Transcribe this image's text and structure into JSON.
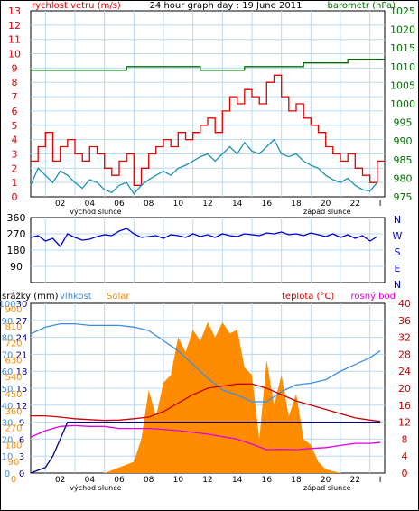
{
  "title": "24 hour graph day : 19 June 2011",
  "colors": {
    "wind": "#e00000",
    "gust": "#1e90b4",
    "baro": "#007000",
    "dir": "#0000cc",
    "rain": "#000080",
    "humidity": "#3e8ee0",
    "solar": "#ff8c00",
    "temp": "#cc0000",
    "dew": "#e000e0",
    "grid": "#b8d8f0"
  },
  "x_ticks": [
    "02",
    "04",
    "06",
    "08",
    "10",
    "12",
    "14",
    "16",
    "18",
    "20",
    "22"
  ],
  "sun": {
    "sunrise_label": "východ slunce",
    "sunset_label": "západ slunce"
  },
  "chart_data": [
    {
      "type": "line",
      "title": "24 hour graph day : 19 June 2011",
      "left_label": "rychlost vetru (m/s)",
      "right_label": "barometr (hPa)",
      "ylim_left": [
        0,
        13
      ],
      "ylim_right": [
        975,
        1025
      ],
      "y_ticks_left": [
        "0",
        "1",
        "2",
        "3",
        "4",
        "5",
        "6",
        "7",
        "8",
        "9",
        "10",
        "11",
        "12",
        "13"
      ],
      "y_ticks_right": [
        "975",
        "980",
        "985",
        "990",
        "995",
        "1000",
        "1005",
        "1010",
        "1015",
        "1020",
        "1025"
      ],
      "grid": true,
      "series": [
        {
          "name": "rychlost vetru",
          "color": "#e00000",
          "hours": [
            0,
            0.5,
            1,
            1.5,
            2,
            2.5,
            3,
            3.5,
            4,
            4.5,
            5,
            5.5,
            6,
            6.5,
            7,
            7.5,
            8,
            8.5,
            9,
            9.5,
            10,
            10.5,
            11,
            11.5,
            12,
            12.5,
            13,
            13.5,
            14,
            14.5,
            15,
            15.5,
            16,
            16.5,
            17,
            17.5,
            18,
            18.5,
            19,
            19.5,
            20,
            20.5,
            21,
            21.5,
            22,
            22.5,
            23,
            23.5
          ],
          "values": [
            2.5,
            3.5,
            4.5,
            2.5,
            3.5,
            4,
            3,
            2.5,
            3.5,
            3,
            2,
            1.5,
            2.5,
            3,
            0.8,
            2,
            3,
            3.5,
            4,
            3.5,
            4.5,
            4,
            4.5,
            5,
            5.5,
            4.5,
            6,
            7,
            6.5,
            7.5,
            7,
            6.5,
            8,
            8.5,
            7,
            6,
            6.5,
            5.5,
            5,
            4.5,
            3.5,
            3,
            2.5,
            3,
            2,
            1.5,
            1,
            2.5
          ]
        },
        {
          "name": "naraz",
          "color": "#1e90b4",
          "hours": [
            0,
            0.5,
            1,
            1.5,
            2,
            2.5,
            3,
            3.5,
            4,
            4.5,
            5,
            5.5,
            6,
            6.5,
            7,
            7.5,
            8,
            8.5,
            9,
            9.5,
            10,
            10.5,
            11,
            11.5,
            12,
            12.5,
            13,
            13.5,
            14,
            14.5,
            15,
            15.5,
            16,
            16.5,
            17,
            17.5,
            18,
            18.5,
            19,
            19.5,
            20,
            20.5,
            21,
            21.5,
            22,
            22.5,
            23,
            23.5
          ],
          "values": [
            0.8,
            2,
            1.5,
            1,
            1.8,
            1.5,
            1,
            0.6,
            1.2,
            1,
            0.5,
            0.3,
            0.8,
            1,
            0.2,
            0.8,
            1.2,
            1.5,
            1.8,
            1.5,
            2,
            2.2,
            2.5,
            2.8,
            3,
            2.5,
            3,
            3.5,
            3,
            3.8,
            3.2,
            3,
            3.5,
            4,
            3,
            2.8,
            3,
            2.5,
            2.2,
            2,
            1.5,
            1.2,
            1,
            1.3,
            0.8,
            0.5,
            0.4,
            1
          ]
        },
        {
          "name": "barometr",
          "color": "#007000",
          "hours": [
            0,
            6,
            6.5,
            11,
            11.5,
            14,
            14.5,
            18,
            18.5,
            21,
            21.5,
            23.7
          ],
          "values": [
            1009,
            1009,
            1010,
            1010,
            1009,
            1009,
            1010,
            1010,
            1011,
            1011,
            1012,
            1012
          ]
        }
      ]
    },
    {
      "type": "scatter",
      "y_ticks": [
        "90",
        "180",
        "270",
        "360"
      ],
      "compass_labels": [
        "N",
        "W",
        "S",
        "E",
        "N"
      ],
      "ylim": [
        0,
        360
      ],
      "series": [
        {
          "name": "smer vetru",
          "color": "#0000cc",
          "hours": [
            0,
            0.5,
            1,
            1.5,
            2,
            2.5,
            3,
            3.5,
            4,
            4.5,
            5,
            5.5,
            6,
            6.5,
            7,
            7.5,
            8,
            8.5,
            9,
            9.5,
            10,
            10.5,
            11,
            11.5,
            12,
            12.5,
            13,
            13.5,
            14,
            14.5,
            15,
            15.5,
            16,
            16.5,
            17,
            17.5,
            18,
            18.5,
            19,
            19.5,
            20,
            20.5,
            21,
            21.5,
            22,
            22.5,
            23,
            23.5
          ],
          "values": [
            250,
            260,
            230,
            245,
            200,
            270,
            250,
            235,
            240,
            255,
            265,
            260,
            285,
            300,
            270,
            250,
            255,
            260,
            245,
            265,
            260,
            250,
            270,
            255,
            265,
            250,
            270,
            260,
            255,
            270,
            265,
            260,
            275,
            270,
            280,
            265,
            270,
            260,
            275,
            265,
            255,
            270,
            250,
            265,
            245,
            260,
            230,
            255
          ]
        }
      ]
    },
    {
      "type": "line",
      "left_labels": [
        "srážky (mm)",
        "vlhkost",
        "Solar"
      ],
      "right_labels": [
        "teplota (°C)",
        "rosný bod"
      ],
      "y_ticks_rain": [
        "0",
        "3",
        "6",
        "9",
        "12",
        "15",
        "18",
        "21",
        "24",
        "27",
        "30"
      ],
      "y_ticks_humidity": [
        "0",
        "10",
        "20",
        "30",
        "40",
        "50",
        "60",
        "70",
        "80",
        "90",
        "100"
      ],
      "y_ticks_solar": [
        "0",
        "90",
        "180",
        "270",
        "360",
        "450",
        "540",
        "630",
        "720",
        "810",
        "900"
      ],
      "y_ticks_temp": [
        "0",
        "4",
        "8",
        "12",
        "16",
        "20",
        "24",
        "28",
        "32",
        "36",
        "40"
      ],
      "ylim_humidity": [
        0,
        100
      ],
      "ylim_temp": [
        0,
        40
      ],
      "grid": true,
      "series": [
        {
          "name": "vlhkost",
          "color": "#3e8ee0",
          "hours": [
            0,
            1,
            2,
            3,
            4,
            5,
            6,
            7,
            8,
            9,
            10,
            11,
            12,
            13,
            14,
            15,
            16,
            17,
            18,
            19,
            20,
            21,
            22,
            23,
            23.7
          ],
          "values": [
            82,
            86,
            88,
            88,
            87,
            87,
            87,
            86,
            84,
            78,
            72,
            64,
            56,
            49,
            46,
            42,
            42,
            48,
            52,
            53,
            55,
            60,
            64,
            68,
            72
          ]
        },
        {
          "name": "teplota",
          "color": "#cc0000",
          "hours": [
            0,
            1,
            2,
            3,
            4,
            5,
            6,
            7,
            8,
            9,
            10,
            11,
            12,
            13,
            14,
            15,
            16,
            17,
            18,
            19,
            20,
            21,
            22,
            23,
            23.7
          ],
          "values": [
            13.5,
            13.5,
            13.2,
            12.8,
            12.6,
            12.4,
            12.5,
            12.8,
            13.2,
            14.5,
            16.5,
            18.5,
            20,
            20.5,
            21,
            21,
            20,
            18.5,
            17,
            16,
            15,
            14,
            13,
            12.5,
            12.2
          ]
        },
        {
          "name": "rosný bod",
          "color": "#e000e0",
          "hours": [
            0,
            1,
            2,
            3,
            4,
            5,
            6,
            7,
            8,
            9,
            10,
            11,
            12,
            13,
            14,
            15,
            16,
            17,
            18,
            19,
            20,
            21,
            22,
            23,
            23.7
          ],
          "values": [
            8.5,
            10,
            11,
            11.2,
            11,
            11,
            10.5,
            10.5,
            10.5,
            10.3,
            10,
            9.6,
            9.2,
            8.6,
            8,
            6.8,
            5.5,
            5.6,
            5.5,
            5.8,
            6,
            6.5,
            7,
            7,
            7.2
          ]
        },
        {
          "name": "srážky",
          "color": "#000080",
          "hours": [
            0,
            1,
            1.5,
            2,
            2.5,
            3,
            23.7
          ],
          "values": [
            0,
            1,
            3,
            6,
            9,
            9,
            9
          ]
        },
        {
          "name": "Solar",
          "color": "#ff8c00",
          "hours": [
            0,
            5,
            6,
            7,
            7.5,
            8,
            8.5,
            9,
            9.5,
            10,
            10.5,
            11,
            11.5,
            12,
            12.5,
            13,
            13.5,
            14,
            14.5,
            15,
            15.5,
            16,
            16.5,
            17,
            17.5,
            18,
            18.5,
            19,
            19.5,
            20,
            21,
            23.7
          ],
          "values": [
            0,
            0,
            30,
            60,
            180,
            440,
            300,
            480,
            520,
            720,
            640,
            760,
            700,
            800,
            720,
            800,
            740,
            760,
            560,
            520,
            180,
            600,
            360,
            520,
            300,
            420,
            180,
            150,
            60,
            20,
            0,
            0
          ]
        }
      ]
    }
  ]
}
